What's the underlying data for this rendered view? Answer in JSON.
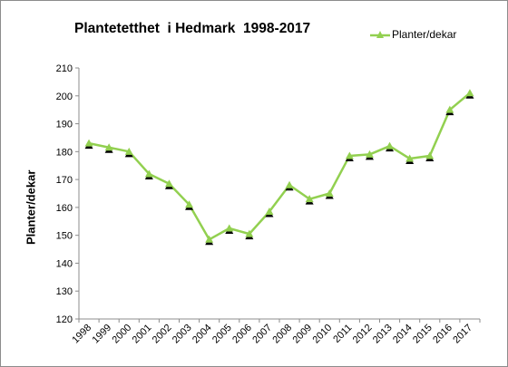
{
  "chart_data": {
    "type": "line",
    "title": "Plantetetthet  i Hedmark  1998-2017",
    "ylabel": "Planter/dekar",
    "xlabel": "",
    "ylim": [
      120,
      210
    ],
    "ytick_step": 10,
    "yticks": [
      "120",
      "130",
      "140",
      "150",
      "160",
      "170",
      "180",
      "190",
      "200",
      "210"
    ],
    "grid": false,
    "legend": "top-right",
    "categories": [
      "1998",
      "1999",
      "2000",
      "2001",
      "2002",
      "2003",
      "2004",
      "2005",
      "2006",
      "2007",
      "2008",
      "2009",
      "2010",
      "2011",
      "2012",
      "2013",
      "2014",
      "2015",
      "2016",
      "2017"
    ],
    "series": [
      {
        "name": "Planter/dekar",
        "color": "#92d050",
        "marker_color": "#92d050",
        "marker_shadow": "#000000",
        "values": [
          183,
          181.5,
          180,
          172,
          168.5,
          161,
          148.5,
          152.5,
          150.5,
          158.5,
          168,
          163,
          165,
          178.5,
          179,
          182,
          177.5,
          178.5,
          195,
          201
        ]
      }
    ]
  }
}
